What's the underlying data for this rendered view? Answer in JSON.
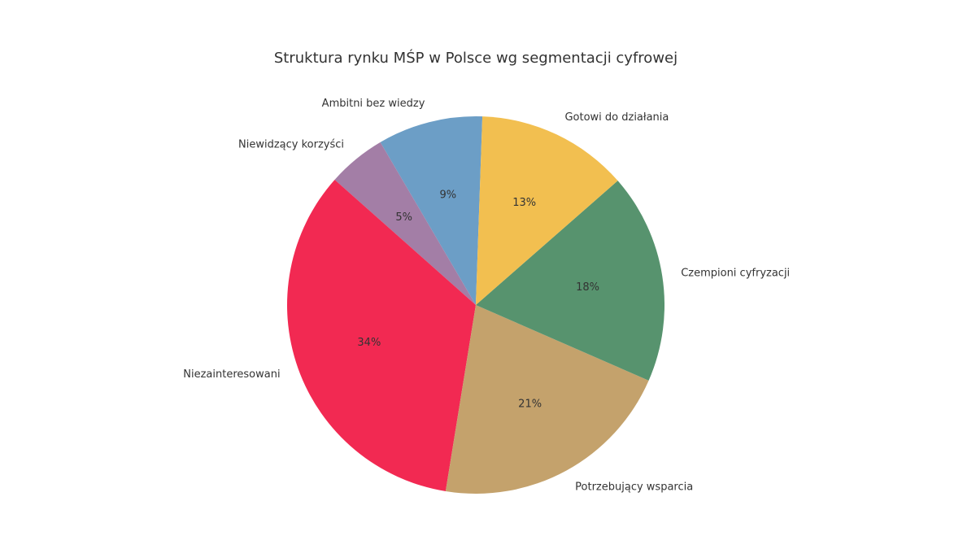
{
  "chart_data": {
    "type": "pie",
    "title": "Struktura rynku MŚP w Polsce wg segmentacji cyfrowej",
    "categories": [
      "Ambitni bez wiedzy",
      "Niewidzący korzyści",
      "Niezainteresowani",
      "Potrzebujący wsparcia",
      "Czempioni cyfryzacji",
      "Gotowi do działania"
    ],
    "values": [
      9,
      5,
      34,
      21,
      18,
      13
    ],
    "value_labels": [
      "9%",
      "5%",
      "34%",
      "21%",
      "18%",
      "13%"
    ],
    "colors": [
      "#6c9ec6",
      "#a37ea6",
      "#f22952",
      "#c4a26c",
      "#57936e",
      "#f2bf50"
    ]
  }
}
